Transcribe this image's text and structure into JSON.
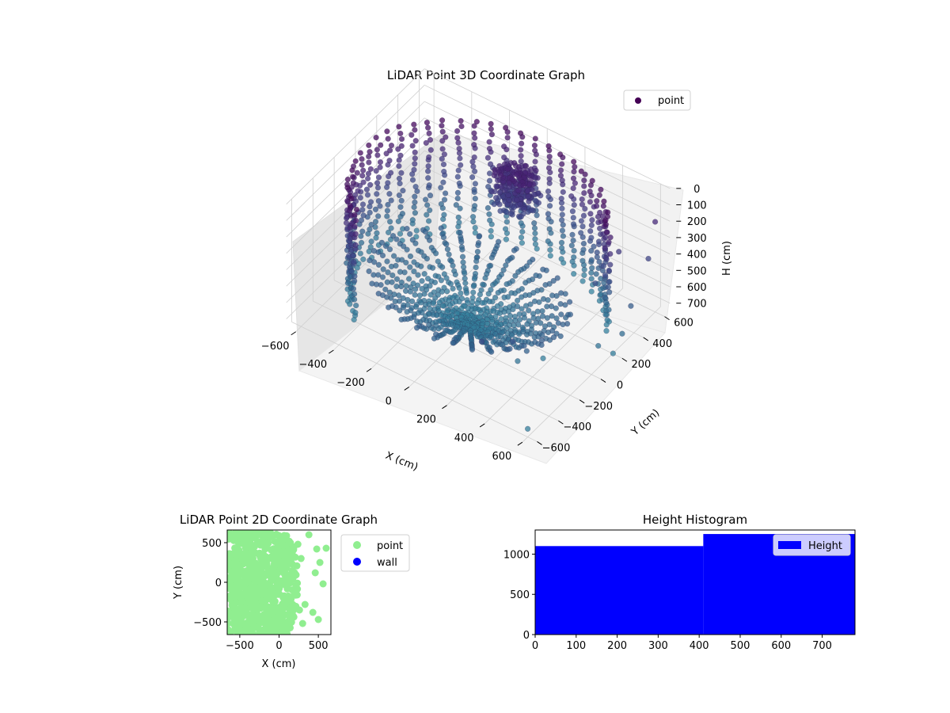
{
  "chart_data": [
    {
      "type": "scatter3d",
      "title": "LiDAR Point 3D Coordinate Graph",
      "xlabel": "X (cm)",
      "ylabel": "Y (cm)",
      "zlabel": "H (cm)",
      "x_ticks": [
        "−600",
        "−400",
        "−200",
        "0",
        "200",
        "400",
        "600"
      ],
      "y_ticks": [
        "−600",
        "−400",
        "−200",
        "0",
        "200",
        "400",
        "600"
      ],
      "z_ticks": [
        "0",
        "100",
        "200",
        "300",
        "400",
        "500",
        "600",
        "700"
      ],
      "xlim": [
        -650,
        650
      ],
      "ylim": [
        -650,
        650
      ],
      "zlim": [
        0,
        750
      ],
      "z_inverted": true,
      "legend": {
        "placement": "upper-right",
        "entries": [
          "point"
        ]
      },
      "colormap": "viridis",
      "series": [
        {
          "name": "point",
          "color": "#440154",
          "structure": {
            "cylinder_radius_cm": 600,
            "cylinder_angle_range_deg": [
              30,
              230
            ],
            "floor_spiral_radius_cm": [
              20,
              500
            ],
            "dense_cluster_center": [
              -50,
              450,
              150
            ],
            "outlier_points": [
              [
                600,
                600,
                200
              ],
              [
                620,
                500,
                350
              ],
              [
                640,
                300,
                500
              ],
              [
                650,
                200,
                600
              ],
              [
                630,
                150,
                700
              ],
              [
                580,
                100,
                650
              ],
              [
                450,
                -200,
                500
              ],
              [
                380,
                -350,
                450
              ],
              [
                300,
                -500,
                400
              ],
              [
                520,
                400,
                300
              ],
              [
                480,
                250,
                420
              ],
              [
                420,
                100,
                550
              ],
              [
                400,
                -100,
                700
              ],
              [
                350,
                -250,
                650
              ],
              [
                600,
                -600,
                700
              ]
            ]
          }
        }
      ],
      "grid": true
    },
    {
      "type": "scatter",
      "title": "LiDAR Point 2D Coordinate Graph",
      "xlabel": "X (cm)",
      "ylabel": "Y (cm)",
      "x_ticks": [
        "−500",
        "0",
        "500"
      ],
      "y_ticks": [
        "−500",
        "0",
        "500"
      ],
      "xlim": [
        -660,
        660
      ],
      "ylim": [
        -660,
        660
      ],
      "legend": {
        "placement": "outside-right",
        "entries": [
          "point",
          "wall"
        ]
      },
      "series": [
        {
          "name": "point",
          "color": "#90EE90"
        },
        {
          "name": "wall",
          "color": "#0000FF",
          "values": []
        }
      ],
      "grid": false
    },
    {
      "type": "bar",
      "title": "Height Histogram",
      "x_ticks": [
        "0",
        "100",
        "200",
        "300",
        "400",
        "500",
        "600",
        "700"
      ],
      "y_ticks": [
        "0",
        "500",
        "1000"
      ],
      "xlim": [
        0,
        780
      ],
      "ylim": [
        0,
        1300
      ],
      "legend": {
        "placement": "upper-right",
        "entries": [
          "Height"
        ]
      },
      "series": [
        {
          "name": "Height",
          "color": "#0000FF",
          "bins": [
            {
              "from": 0,
              "to": 410,
              "count": 1100
            },
            {
              "from": 410,
              "to": 780,
              "count": 1250
            }
          ]
        }
      ],
      "grid": false
    }
  ]
}
